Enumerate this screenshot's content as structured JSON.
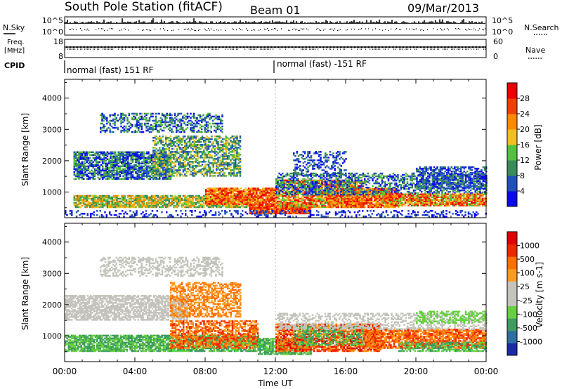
{
  "header": {
    "station": "South Pole Station (fitACF)",
    "beam": "Beam 01",
    "date": "09/Mar/2013"
  },
  "noise_panel": {
    "left_label": "N.Sky",
    "left_ticks": [
      "10^5",
      "10^0"
    ],
    "right_label": "N.Search",
    "right_ticks": [
      "10^5",
      "10^0"
    ]
  },
  "freq_panel": {
    "left_label_1": "Freq.",
    "left_label_2": "[MHz]",
    "left_ticks": [
      "18",
      "8"
    ],
    "right_label": "Nave",
    "right_ticks": [
      "60",
      "0"
    ]
  },
  "cpid": {
    "label": "CPID",
    "segments": [
      {
        "text": "normal (fast) 151 RF",
        "start_hour": 0
      },
      {
        "text": "normal (fast) -151 RF",
        "start_hour": 12
      }
    ]
  },
  "chart_data": [
    {
      "type": "heatmap",
      "panel": "power",
      "ylabel": "Slant Range [km]",
      "yticks": [
        1000,
        2000,
        3000,
        4000
      ],
      "ylim": [
        180,
        4600
      ],
      "xlim": [
        0,
        24
      ],
      "colorbar": {
        "label": "Power [dB]",
        "tick_labels": [
          "4",
          "8",
          "12",
          "16",
          "20",
          "24",
          "28"
        ],
        "colors": [
          "#0a0aee",
          "#2050c0",
          "#3a8a5a",
          "#55c040",
          "#f0c020",
          "#ff8a00",
          "#f04000",
          "#ee0000"
        ]
      }
    },
    {
      "type": "heatmap",
      "panel": "velocity",
      "ylabel": "Slant Range [km]",
      "yticks": [
        1000,
        2000,
        3000,
        4000
      ],
      "ylim": [
        180,
        4600
      ],
      "xlim": [
        0,
        24
      ],
      "xlabel": "Time UT",
      "xticks": [
        "00:00",
        "04:00",
        "08:00",
        "12:00",
        "16:00",
        "20:00",
        "00:00"
      ],
      "colorbar": {
        "label": "Velocity [m s-1]",
        "tick_labels": [
          "1000",
          "500",
          "100",
          "25",
          "-25",
          "-100",
          "-500",
          "-1000"
        ],
        "colors": [
          "#1a2aa8",
          "#2f6fa0",
          "#3e9c60",
          "#66d040",
          "#c4c4bc",
          "#c4c4bc",
          "#ff9a20",
          "#ff7000",
          "#ee2800",
          "#e00000"
        ]
      }
    }
  ]
}
